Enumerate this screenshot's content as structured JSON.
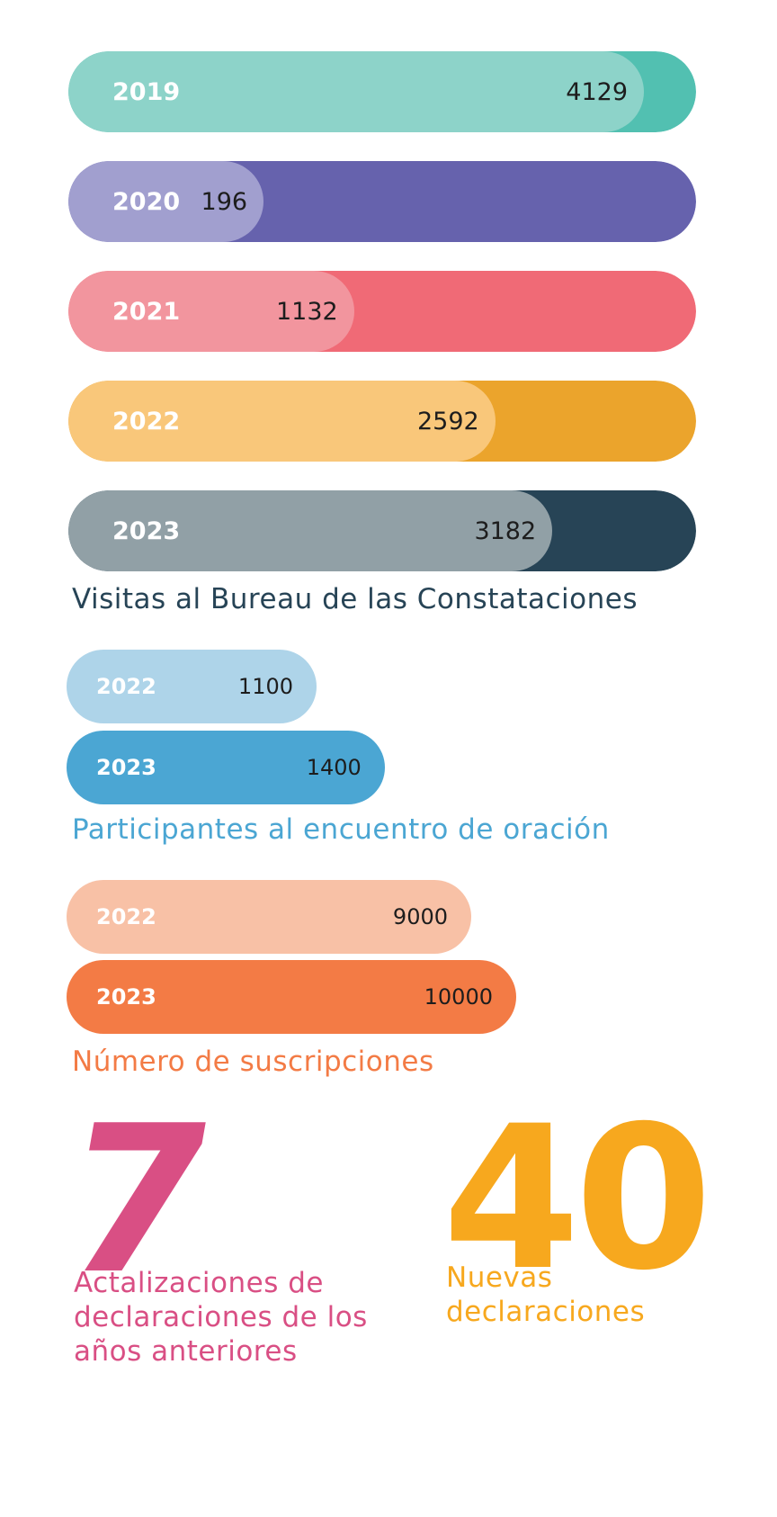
{
  "chart_data": [
    {
      "type": "bar",
      "orientation": "horizontal",
      "title": "Visitas al Bureau de las Constataciones",
      "categories": [
        "2019",
        "2020",
        "2021",
        "2022",
        "2023"
      ],
      "values": [
        4129,
        196,
        1132,
        2592,
        3182
      ],
      "colors": {
        "fill": [
          "#8dd3c9",
          "#a19fcf",
          "#f2959e",
          "#f9c77a",
          "#91a0a6"
        ],
        "track": [
          "#52c0b1",
          "#6662ad",
          "#f06a76",
          "#eba42c",
          "#274456"
        ],
        "title": "#274456"
      }
    },
    {
      "type": "bar",
      "orientation": "horizontal",
      "title": "Participantes al encuentro de oración",
      "categories": [
        "2022",
        "2023"
      ],
      "values": [
        1100,
        1400
      ],
      "colors": {
        "fill": [
          "#aed4e9",
          "#4ba6d3"
        ],
        "title": "#4ba6d3"
      }
    },
    {
      "type": "bar",
      "orientation": "horizontal",
      "title": "Número de suscripciones",
      "categories": [
        "2022",
        "2023"
      ],
      "values": [
        9000,
        10000
      ],
      "colors": {
        "fill": [
          "#f8c1a6",
          "#f37b45"
        ],
        "title": "#f37b45"
      }
    }
  ],
  "stats": [
    {
      "number": "7",
      "label": "Actalizaciones de declaraciones de los años anteriores",
      "color": "#d94f84"
    },
    {
      "number": "40",
      "label": "Nuevas declaraciones",
      "color": "#f7a81e"
    }
  ]
}
